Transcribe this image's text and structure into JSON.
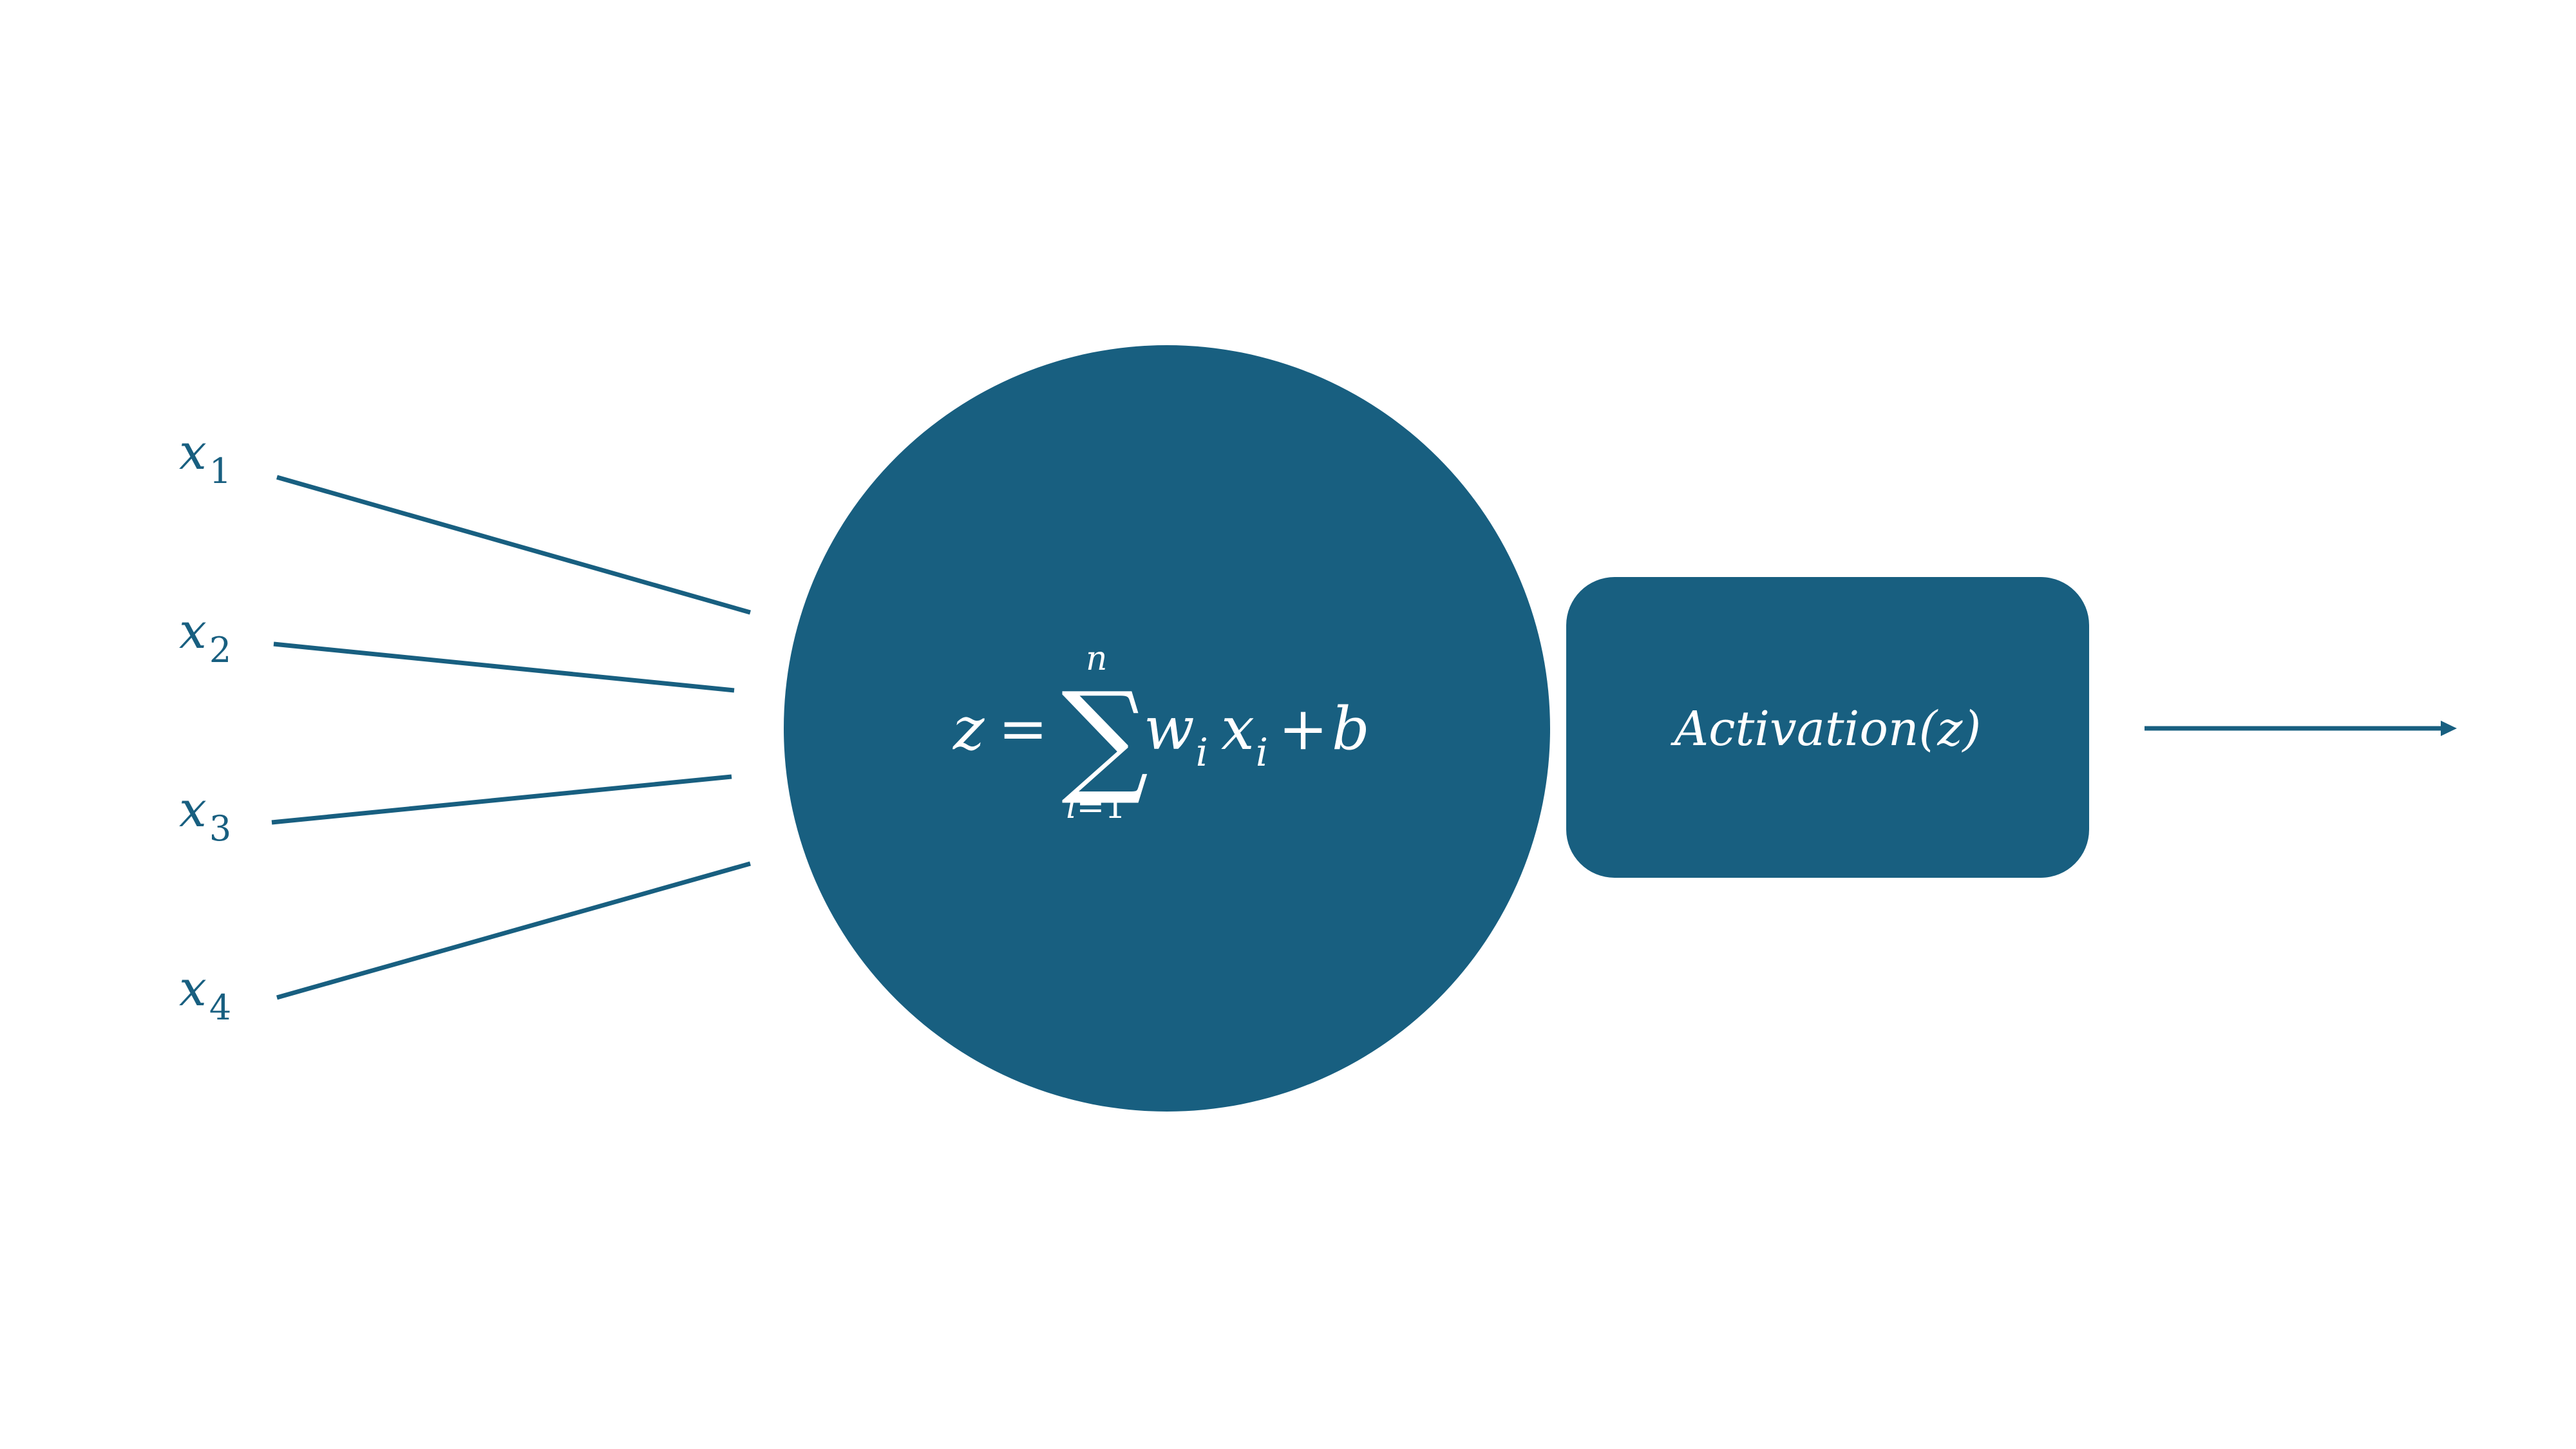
{
  "colors": {
    "primary": "#185f80",
    "background": "#ffffff",
    "text_on_primary": "#ffffff"
  },
  "inputs": [
    {
      "var": "x",
      "sub": "1"
    },
    {
      "var": "x",
      "sub": "2"
    },
    {
      "var": "x",
      "sub": "3"
    },
    {
      "var": "x",
      "sub": "4"
    }
  ],
  "neuron": {
    "lhs": "z",
    "equals": "=",
    "sum_symbol": "∑",
    "sum_upper": "n",
    "sum_lower_var": "i",
    "sum_lower_eq": "=",
    "sum_lower_val": "1",
    "weight_var": "w",
    "weight_sub": "i",
    "input_var": "x",
    "input_sub": "i",
    "plus": "+",
    "bias": "b"
  },
  "activation": {
    "label": "Activation(z)"
  }
}
